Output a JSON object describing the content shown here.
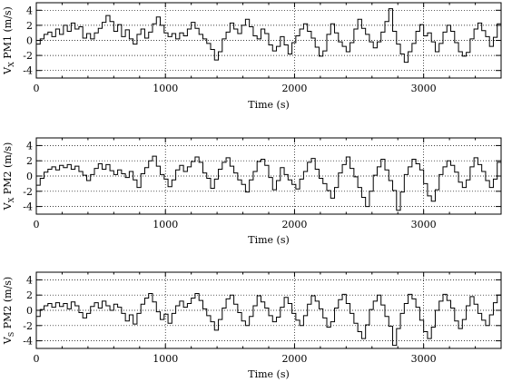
{
  "chart_data": [
    {
      "type": "line",
      "step": true,
      "ylabel_main": "V",
      "ylabel_sub": "X",
      "ylabel_rest": " PM1 (m/s)",
      "xlabel": "Time (s)",
      "xlim": [
        0,
        3600
      ],
      "ylim": [
        -5,
        5
      ],
      "xticks": [
        0,
        1000,
        2000,
        3000
      ],
      "yticks": [
        -4,
        -2,
        0,
        2,
        4
      ],
      "xtick_labels": [
        "0",
        "1000",
        "2000",
        "3000"
      ],
      "ytick_labels": [
        "-4",
        "-2",
        "0",
        "2",
        "4"
      ],
      "grid": "dotted",
      "x": [
        0,
        30,
        60,
        90,
        120,
        150,
        180,
        210,
        240,
        270,
        300,
        330,
        360,
        390,
        420,
        450,
        480,
        510,
        540,
        570,
        600,
        630,
        660,
        690,
        720,
        750,
        780,
        810,
        840,
        870,
        900,
        930,
        960,
        990,
        1020,
        1050,
        1080,
        1110,
        1140,
        1170,
        1200,
        1230,
        1260,
        1290,
        1320,
        1350,
        1380,
        1410,
        1440,
        1470,
        1500,
        1530,
        1560,
        1590,
        1620,
        1650,
        1680,
        1710,
        1740,
        1770,
        1800,
        1830,
        1860,
        1890,
        1920,
        1950,
        1980,
        2010,
        2040,
        2070,
        2100,
        2130,
        2160,
        2190,
        2220,
        2250,
        2280,
        2310,
        2340,
        2370,
        2400,
        2430,
        2460,
        2490,
        2520,
        2550,
        2580,
        2610,
        2640,
        2670,
        2700,
        2730,
        2760,
        2790,
        2820,
        2850,
        2880,
        2910,
        2940,
        2970,
        3000,
        3030,
        3060,
        3090,
        3120,
        3150,
        3180,
        3210,
        3240,
        3270,
        3300,
        3330,
        3360,
        3390,
        3420,
        3450,
        3480,
        3510,
        3540,
        3570
      ],
      "y": [
        -0.5,
        0.2,
        0.8,
        1.1,
        0.5,
        1.5,
        0.8,
        2.0,
        1.2,
        2.3,
        1.5,
        1.8,
        0.3,
        0.9,
        0.2,
        1.0,
        1.6,
        2.4,
        3.3,
        2.5,
        1.2,
        2.1,
        0.5,
        1.4,
        0.2,
        -0.5,
        0.8,
        1.5,
        0.3,
        1.1,
        2.2,
        3.1,
        2.0,
        1.0,
        0.5,
        0.9,
        0.2,
        1.0,
        0.6,
        1.5,
        2.4,
        1.6,
        0.8,
        0.2,
        -0.4,
        -1.2,
        -2.6,
        -1.5,
        0.2,
        1.1,
        2.3,
        1.5,
        0.9,
        2.0,
        2.8,
        1.8,
        0.6,
        0.2,
        1.5,
        0.9,
        -0.6,
        -1.4,
        -0.8,
        0.5,
        -0.6,
        -1.8,
        -0.3,
        0.6,
        1.5,
        2.2,
        1.2,
        0.3,
        -0.9,
        -2.1,
        -1.4,
        0.8,
        2.2,
        1.0,
        -0.2,
        -0.8,
        -1.5,
        -0.3,
        1.5,
        2.8,
        1.6,
        0.8,
        -0.2,
        -1.0,
        -0.2,
        1.1,
        2.5,
        4.2,
        1.2,
        -0.5,
        -1.8,
        -2.9,
        -1.5,
        -0.4,
        1.2,
        2.1,
        0.6,
        1.0,
        -0.2,
        -1.5,
        -0.4,
        1.1,
        2.0,
        1.2,
        -0.3,
        -1.5,
        -2.1,
        -1.6,
        0.2,
        1.5,
        2.3,
        1.3,
        0.5,
        -0.8,
        0.4,
        2.2
      ],
      "color": "#000000"
    },
    {
      "type": "line",
      "step": true,
      "ylabel_main": "V",
      "ylabel_sub": "X",
      "ylabel_rest": " PM2 (m/s)",
      "xlabel": "Time (s)",
      "xlim": [
        0,
        3600
      ],
      "ylim": [
        -5,
        5
      ],
      "xticks": [
        0,
        1000,
        2000,
        3000
      ],
      "yticks": [
        -4,
        -2,
        0,
        2,
        4
      ],
      "xtick_labels": [
        "0",
        "1000",
        "2000",
        "3000"
      ],
      "ytick_labels": [
        "-4",
        "-2",
        "0",
        "2",
        "4"
      ],
      "grid": "dotted",
      "x": [
        0,
        30,
        60,
        90,
        120,
        150,
        180,
        210,
        240,
        270,
        300,
        330,
        360,
        390,
        420,
        450,
        480,
        510,
        540,
        570,
        600,
        630,
        660,
        690,
        720,
        750,
        780,
        810,
        840,
        870,
        900,
        930,
        960,
        990,
        1020,
        1050,
        1080,
        1110,
        1140,
        1170,
        1200,
        1230,
        1260,
        1290,
        1320,
        1350,
        1380,
        1410,
        1440,
        1470,
        1500,
        1530,
        1560,
        1590,
        1620,
        1650,
        1680,
        1710,
        1740,
        1770,
        1800,
        1830,
        1860,
        1890,
        1920,
        1950,
        1980,
        2010,
        2040,
        2070,
        2100,
        2130,
        2160,
        2190,
        2220,
        2250,
        2280,
        2310,
        2340,
        2370,
        2400,
        2430,
        2460,
        2490,
        2520,
        2550,
        2580,
        2610,
        2640,
        2670,
        2700,
        2730,
        2760,
        2790,
        2820,
        2850,
        2880,
        2910,
        2940,
        2970,
        3000,
        3030,
        3060,
        3090,
        3120,
        3150,
        3180,
        3210,
        3240,
        3270,
        3300,
        3330,
        3360,
        3390,
        3420,
        3450,
        3480,
        3510,
        3540,
        3570
      ],
      "y": [
        -1.2,
        -0.3,
        0.5,
        0.9,
        1.2,
        0.8,
        1.4,
        1.1,
        1.5,
        0.9,
        1.3,
        0.6,
        0.1,
        -0.6,
        0.2,
        1.0,
        1.6,
        0.9,
        1.5,
        0.7,
        0.2,
        0.8,
        0.3,
        -0.2,
        0.6,
        -0.5,
        -1.5,
        0.3,
        1.1,
        2.0,
        2.6,
        1.3,
        0.2,
        -0.4,
        -1.4,
        -0.5,
        0.8,
        1.4,
        0.6,
        1.2,
        1.9,
        2.5,
        1.8,
        0.4,
        -0.3,
        -1.6,
        -0.4,
        0.9,
        1.8,
        2.4,
        1.3,
        0.4,
        -0.5,
        -1.1,
        -2.1,
        -0.5,
        0.6,
        1.9,
        2.2,
        1.4,
        -0.2,
        -1.8,
        -0.6,
        1.1,
        0.2,
        -0.5,
        -1.1,
        -1.7,
        -0.4,
        0.6,
        1.8,
        2.3,
        0.9,
        -0.3,
        -1.0,
        -1.9,
        -2.9,
        -1.5,
        0.4,
        1.5,
        2.5,
        1.0,
        -0.1,
        -1.5,
        -2.8,
        -4.0,
        -2.0,
        0.1,
        1.2,
        2.2,
        0.8,
        -0.6,
        -1.9,
        -4.5,
        -2.1,
        0.2,
        1.2,
        2.2,
        1.6,
        0.8,
        -1.0,
        -2.6,
        -3.3,
        -1.8,
        0.2,
        1.2,
        2.0,
        1.4,
        0.5,
        -0.8,
        -1.5,
        -0.5,
        1.2,
        2.4,
        1.5,
        0.6,
        -0.6,
        -1.5,
        -0.4,
        1.8
      ],
      "color": "#000000"
    },
    {
      "type": "line",
      "step": true,
      "ylabel_main": "V",
      "ylabel_sub": "S",
      "ylabel_rest": " PM2 (m/s)",
      "xlabel": "Time (s)",
      "xlim": [
        0,
        3600
      ],
      "ylim": [
        -5,
        5
      ],
      "xticks": [
        0,
        1000,
        2000,
        3000
      ],
      "yticks": [
        -4,
        -2,
        0,
        2,
        4
      ],
      "xtick_labels": [
        "0",
        "1000",
        "2000",
        "3000"
      ],
      "ytick_labels": [
        "-4",
        "-2",
        "0",
        "2",
        "4"
      ],
      "grid": "dotted",
      "x": [
        0,
        30,
        60,
        90,
        120,
        150,
        180,
        210,
        240,
        270,
        300,
        330,
        360,
        390,
        420,
        450,
        480,
        510,
        540,
        570,
        600,
        630,
        660,
        690,
        720,
        750,
        780,
        810,
        840,
        870,
        900,
        930,
        960,
        990,
        1020,
        1050,
        1080,
        1110,
        1140,
        1170,
        1200,
        1230,
        1260,
        1290,
        1320,
        1350,
        1380,
        1410,
        1440,
        1470,
        1500,
        1530,
        1560,
        1590,
        1620,
        1650,
        1680,
        1710,
        1740,
        1770,
        1800,
        1830,
        1860,
        1890,
        1920,
        1950,
        1980,
        2010,
        2040,
        2070,
        2100,
        2130,
        2160,
        2190,
        2220,
        2250,
        2280,
        2310,
        2340,
        2370,
        2400,
        2430,
        2460,
        2490,
        2520,
        2550,
        2580,
        2610,
        2640,
        2670,
        2700,
        2730,
        2760,
        2790,
        2820,
        2850,
        2880,
        2910,
        2940,
        2970,
        3000,
        3030,
        3060,
        3090,
        3120,
        3150,
        3180,
        3210,
        3240,
        3270,
        3300,
        3330,
        3360,
        3390,
        3420,
        3450,
        3480,
        3510,
        3540,
        3570
      ],
      "y": [
        -0.8,
        0.1,
        0.6,
        0.9,
        0.4,
        1.0,
        0.5,
        0.9,
        0.2,
        1.1,
        0.6,
        -0.3,
        -1.0,
        -0.4,
        0.5,
        1.0,
        0.3,
        1.2,
        0.6,
        0.0,
        0.8,
        0.4,
        -0.4,
        -1.4,
        -0.6,
        -1.8,
        -0.4,
        0.8,
        1.6,
        2.2,
        1.1,
        -0.2,
        -1.2,
        -0.5,
        -1.7,
        -0.4,
        0.6,
        1.2,
        0.4,
        0.9,
        1.6,
        2.2,
        1.3,
        0.2,
        -0.7,
        -1.5,
        -2.6,
        -1.2,
        0.3,
        1.5,
        2.0,
        0.8,
        -0.3,
        -1.4,
        -2.0,
        -0.8,
        0.6,
        1.9,
        1.1,
        0.3,
        -0.7,
        -1.5,
        -0.9,
        0.4,
        1.7,
        0.9,
        -0.4,
        -1.3,
        -2.0,
        -0.7,
        0.8,
        1.9,
        1.2,
        0.2,
        -1.0,
        -2.2,
        -1.5,
        0.3,
        1.4,
        2.1,
        0.9,
        -0.4,
        -1.7,
        -2.8,
        -3.7,
        -1.9,
        0.1,
        1.2,
        2.0,
        0.7,
        -0.8,
        -2.1,
        -4.6,
        -2.4,
        -0.4,
        0.9,
        2.1,
        1.5,
        0.4,
        -1.3,
        -2.8,
        -3.7,
        -2.2,
        0.0,
        1.2,
        2.1,
        1.3,
        0.3,
        -1.4,
        -2.4,
        -1.2,
        0.6,
        1.8,
        0.8,
        -0.4,
        -1.3,
        -2.0,
        -0.6,
        1.0,
        2.0
      ],
      "color": "#000000"
    }
  ]
}
